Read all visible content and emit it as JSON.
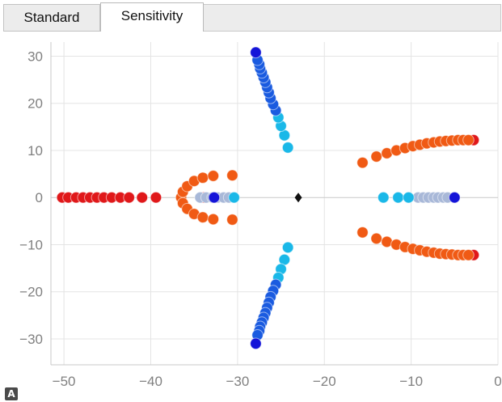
{
  "tabs": [
    {
      "label": "Standard",
      "active": false
    },
    {
      "label": "Sensitivity",
      "active": true
    }
  ],
  "badge": "A",
  "colors": {
    "red": "#e0181a",
    "orange": "#f05a14",
    "cyan": "#1ab8e8",
    "blue": "#1a5be0",
    "darkblue": "#1414d8",
    "marker": "#111111",
    "grid": "#e4e4e4",
    "axis": "#c8c8c8"
  },
  "chart_data": {
    "type": "scatter",
    "title": "",
    "xlabel": "",
    "ylabel": "",
    "xlim": [
      -51.5,
      0
    ],
    "ylim": [
      -35.5,
      33
    ],
    "xticks": [
      -50,
      -40,
      -30,
      -20,
      -10,
      0
    ],
    "yticks": [
      30,
      20,
      10,
      0,
      -10,
      -20,
      -30
    ],
    "grid": true,
    "series": [
      {
        "color": "#e0181a",
        "points": [
          [
            -50.2,
            0
          ],
          [
            -49.5,
            0
          ],
          [
            -48.6,
            0
          ],
          [
            -47.8,
            0
          ],
          [
            -47.0,
            0
          ],
          [
            -46.2,
            0
          ],
          [
            -45.4,
            0
          ],
          [
            -44.5,
            0
          ],
          [
            -43.5,
            0
          ],
          [
            -42.5,
            0
          ],
          [
            -41.0,
            0
          ],
          [
            -39.4,
            0
          ],
          [
            -33.9,
            0
          ],
          [
            -2.8,
            12.2
          ],
          [
            -2.8,
            -12.2
          ]
        ]
      },
      {
        "color": "#f05a14",
        "points": [
          [
            -36.5,
            0
          ],
          [
            -36.3,
            1.2
          ],
          [
            -35.8,
            2.4
          ],
          [
            -35.0,
            3.5
          ],
          [
            -34.0,
            4.2
          ],
          [
            -32.8,
            4.6
          ],
          [
            -30.6,
            4.7
          ],
          [
            -36.3,
            -1.2
          ],
          [
            -35.8,
            -2.4
          ],
          [
            -35.0,
            -3.5
          ],
          [
            -34.0,
            -4.2
          ],
          [
            -32.8,
            -4.6
          ],
          [
            -30.6,
            -4.7
          ],
          [
            -15.6,
            7.4
          ],
          [
            -14.0,
            8.7
          ],
          [
            -12.8,
            9.4
          ],
          [
            -11.7,
            10.0
          ],
          [
            -10.7,
            10.5
          ],
          [
            -9.8,
            10.9
          ],
          [
            -9.0,
            11.2
          ],
          [
            -8.2,
            11.5
          ],
          [
            -7.4,
            11.7
          ],
          [
            -6.7,
            11.9
          ],
          [
            -6.0,
            12.0
          ],
          [
            -5.3,
            12.1
          ],
          [
            -4.6,
            12.2
          ],
          [
            -4.0,
            12.2
          ],
          [
            -3.4,
            12.2
          ],
          [
            -15.6,
            -7.4
          ],
          [
            -14.0,
            -8.7
          ],
          [
            -12.8,
            -9.4
          ],
          [
            -11.7,
            -10.0
          ],
          [
            -10.7,
            -10.5
          ],
          [
            -9.8,
            -10.9
          ],
          [
            -9.0,
            -11.2
          ],
          [
            -8.2,
            -11.5
          ],
          [
            -7.4,
            -11.7
          ],
          [
            -6.7,
            -11.9
          ],
          [
            -6.0,
            -12.0
          ],
          [
            -5.3,
            -12.1
          ],
          [
            -4.6,
            -12.2
          ],
          [
            -4.0,
            -12.2
          ],
          [
            -3.4,
            -12.2
          ]
        ]
      },
      {
        "color": "#a8b8d8",
        "points": [
          [
            -34.3,
            0
          ],
          [
            -33.6,
            0
          ],
          [
            -32.9,
            0
          ],
          [
            -32.3,
            0
          ],
          [
            -31.6,
            0
          ],
          [
            -31.0,
            0
          ],
          [
            -9.2,
            0
          ],
          [
            -8.6,
            0
          ],
          [
            -8.0,
            0
          ],
          [
            -7.4,
            0
          ],
          [
            -6.9,
            0
          ],
          [
            -6.3,
            0
          ],
          [
            -5.8,
            0
          ]
        ]
      },
      {
        "color": "#1ab8e8",
        "points": [
          [
            -30.4,
            0
          ],
          [
            -13.2,
            0
          ],
          [
            -11.5,
            0
          ],
          [
            -10.3,
            0
          ],
          [
            -24.2,
            10.6
          ],
          [
            -24.6,
            13.2
          ],
          [
            -25.0,
            15.2
          ],
          [
            -25.3,
            17.0
          ],
          [
            -24.2,
            -10.6
          ],
          [
            -24.6,
            -13.2
          ],
          [
            -25.0,
            -15.2
          ],
          [
            -25.3,
            -17.0
          ]
        ]
      },
      {
        "color": "#1a5be0",
        "points": [
          [
            -25.6,
            18.5
          ],
          [
            -25.9,
            19.8
          ],
          [
            -26.2,
            21.1
          ],
          [
            -26.4,
            22.3
          ],
          [
            -26.6,
            23.4
          ],
          [
            -26.8,
            24.5
          ],
          [
            -27.0,
            25.5
          ],
          [
            -27.2,
            26.5
          ],
          [
            -27.4,
            27.4
          ],
          [
            -27.5,
            28.3
          ],
          [
            -27.7,
            29.2
          ],
          [
            -25.6,
            -18.5
          ],
          [
            -25.9,
            -19.8
          ],
          [
            -26.2,
            -21.1
          ],
          [
            -26.4,
            -22.3
          ],
          [
            -26.6,
            -23.4
          ],
          [
            -26.8,
            -24.5
          ],
          [
            -27.0,
            -25.5
          ],
          [
            -27.2,
            -26.5
          ],
          [
            -27.4,
            -27.4
          ],
          [
            -27.5,
            -28.3
          ],
          [
            -27.7,
            -29.2
          ]
        ]
      },
      {
        "color": "#1414d8",
        "points": [
          [
            -32.7,
            0
          ],
          [
            -5.0,
            0
          ],
          [
            -27.9,
            30.8
          ],
          [
            -27.9,
            -31.0
          ]
        ]
      }
    ],
    "marker": {
      "shape": "diamond",
      "x": -23.0,
      "y": 0,
      "color": "#111111"
    }
  }
}
